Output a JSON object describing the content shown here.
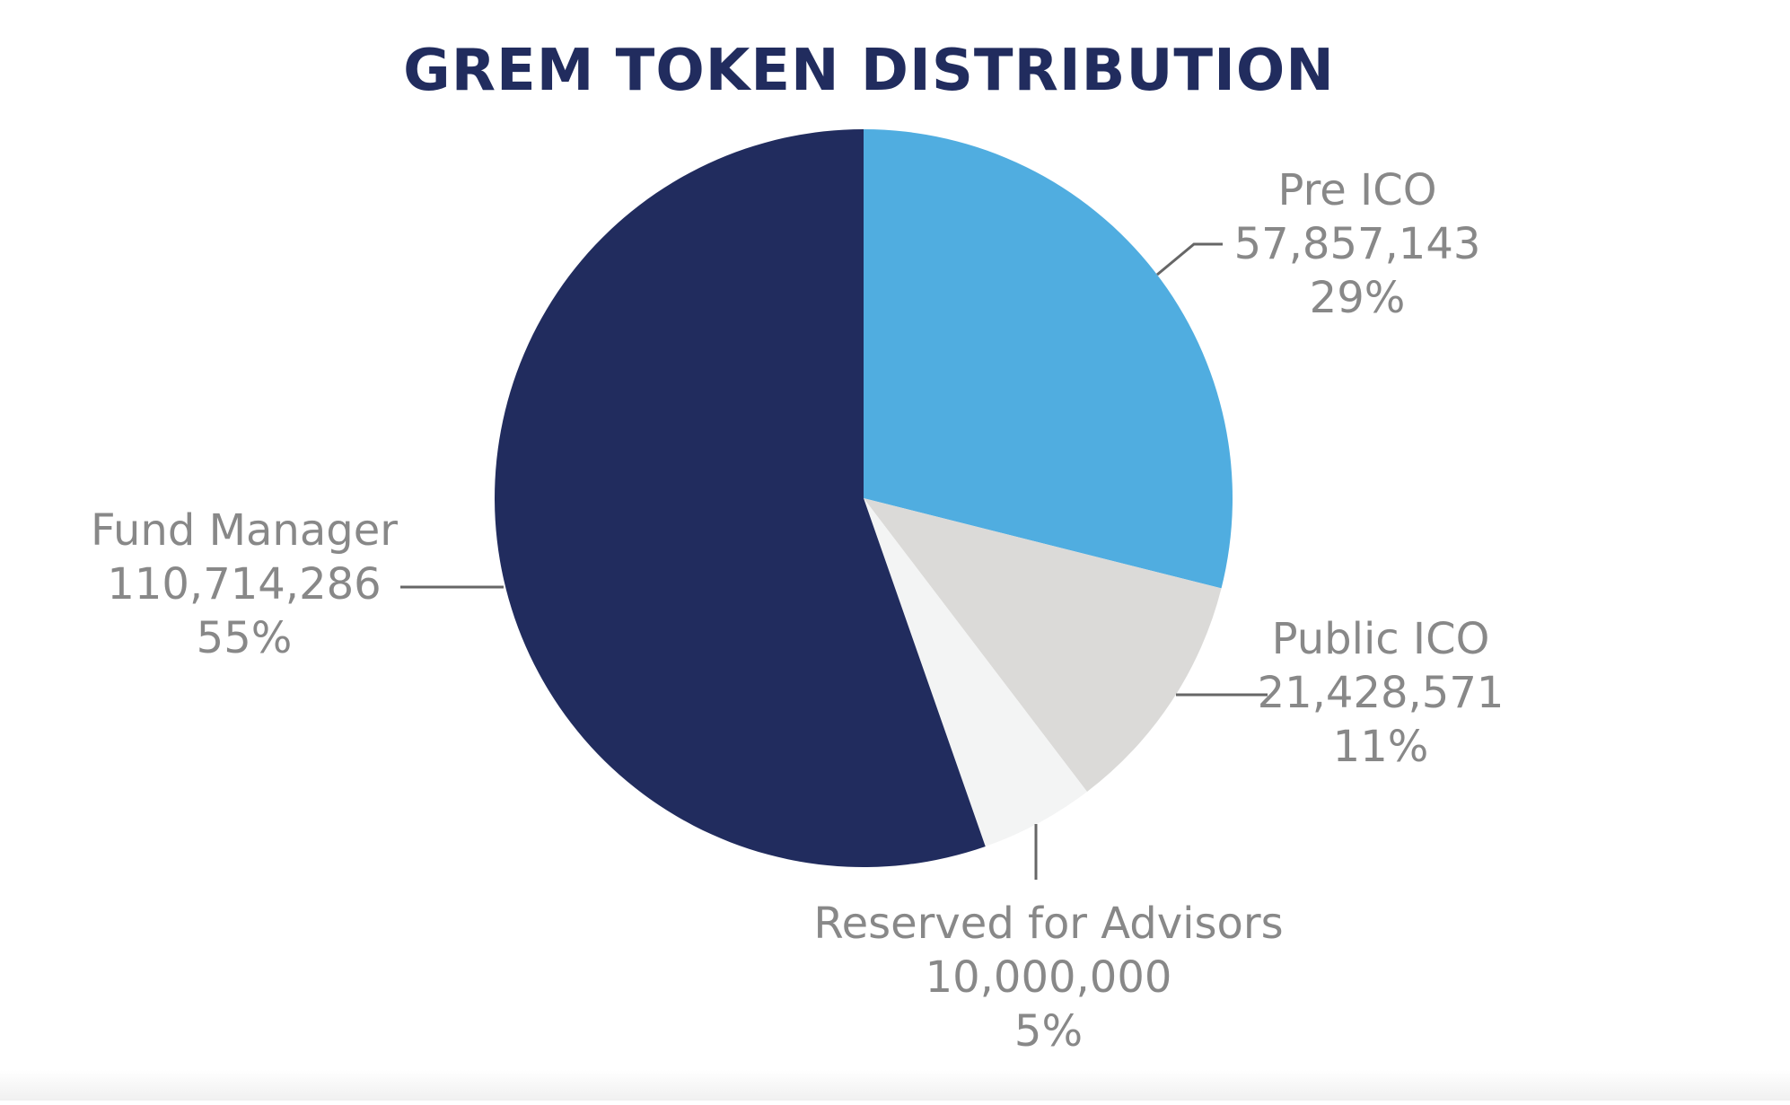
{
  "chart_data": {
    "type": "pie",
    "title": "GREM TOKEN DISTRIBUTION",
    "slices": [
      {
        "label": "Pre ICO",
        "value_text": "57,857,143",
        "value": 57857143,
        "percent": 29,
        "percent_text": "29%",
        "color": "#50ADE0"
      },
      {
        "label": "Public ICO",
        "value_text": "21,428,571",
        "value": 21428571,
        "percent": 11,
        "percent_text": "11%",
        "color": "#DBDAD8"
      },
      {
        "label": "Reserved for Advisors",
        "value_text": "10,000,000",
        "value": 10000000,
        "percent": 5,
        "percent_text": "5%",
        "color": "#F3F4F4"
      },
      {
        "label": "Fund Manager",
        "value_text": "110,714,286",
        "value": 110714286,
        "percent": 55,
        "percent_text": "55%",
        "color": "#212C5E"
      }
    ],
    "start_angle": "12 o'clock",
    "direction": "clockwise",
    "legend": "none",
    "colors": {
      "title": "#212C5E",
      "label_text": "#888888",
      "leader_line": "#666666"
    }
  }
}
